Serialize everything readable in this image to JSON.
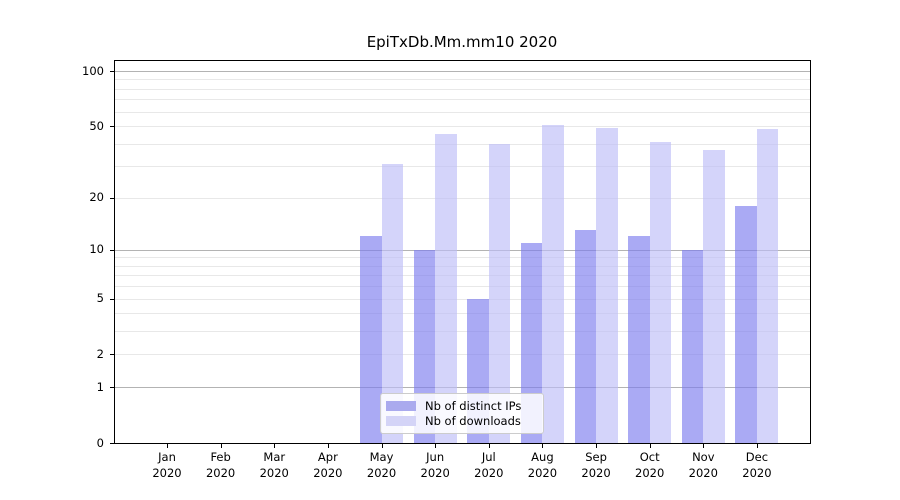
{
  "title": "EpiTxDb.Mm.mm10 2020",
  "chart_data": {
    "type": "bar",
    "title": "EpiTxDb.Mm.mm10 2020",
    "categories": [
      "Jan",
      "Feb",
      "Mar",
      "Apr",
      "May",
      "Jun",
      "Jul",
      "Aug",
      "Sep",
      "Oct",
      "Nov",
      "Dec"
    ],
    "year": "2020",
    "x_tick_labels": [
      "Jan\n2020",
      "Feb\n2020",
      "Mar\n2020",
      "Apr\n2020",
      "May\n2020",
      "Jun\n2020",
      "Jul\n2020",
      "Aug\n2020",
      "Sep\n2020",
      "Oct\n2020",
      "Nov\n2020",
      "Dec\n2020"
    ],
    "series": [
      {
        "name": "Nb of distinct IPs",
        "values": [
          0,
          0,
          0,
          0,
          12,
          10,
          5,
          11,
          13,
          12,
          10,
          18
        ],
        "color": "#aaaaee",
        "bar_rgba": "rgba(124,124,238,0.65)"
      },
      {
        "name": "Nb of downloads",
        "values": [
          0,
          0,
          0,
          0,
          31,
          45,
          40,
          51,
          49,
          41,
          37,
          48
        ],
        "color": "#d4d4f7",
        "bar_rgba": "rgba(189,189,247,0.65)"
      }
    ],
    "yscale": "log1p",
    "ylim": [
      0,
      115
    ],
    "y_tick_values": [
      100,
      50,
      20,
      10,
      5,
      2,
      1,
      0
    ],
    "y_tick_labels": [
      "100",
      "50",
      "20",
      "10",
      "5",
      "2",
      "1",
      "0"
    ],
    "grid": true,
    "major_grid_values": [
      1,
      10,
      100
    ],
    "minor_grid_values": [
      2,
      3,
      4,
      5,
      6,
      7,
      8,
      9,
      20,
      30,
      40,
      50,
      60,
      70,
      80,
      90
    ],
    "legend_position": "lower center"
  },
  "colors": {
    "major_grid": "#b3b3b3",
    "minor_grid": "#e8e8e8",
    "axis": "#000000",
    "background": "#ffffff"
  }
}
